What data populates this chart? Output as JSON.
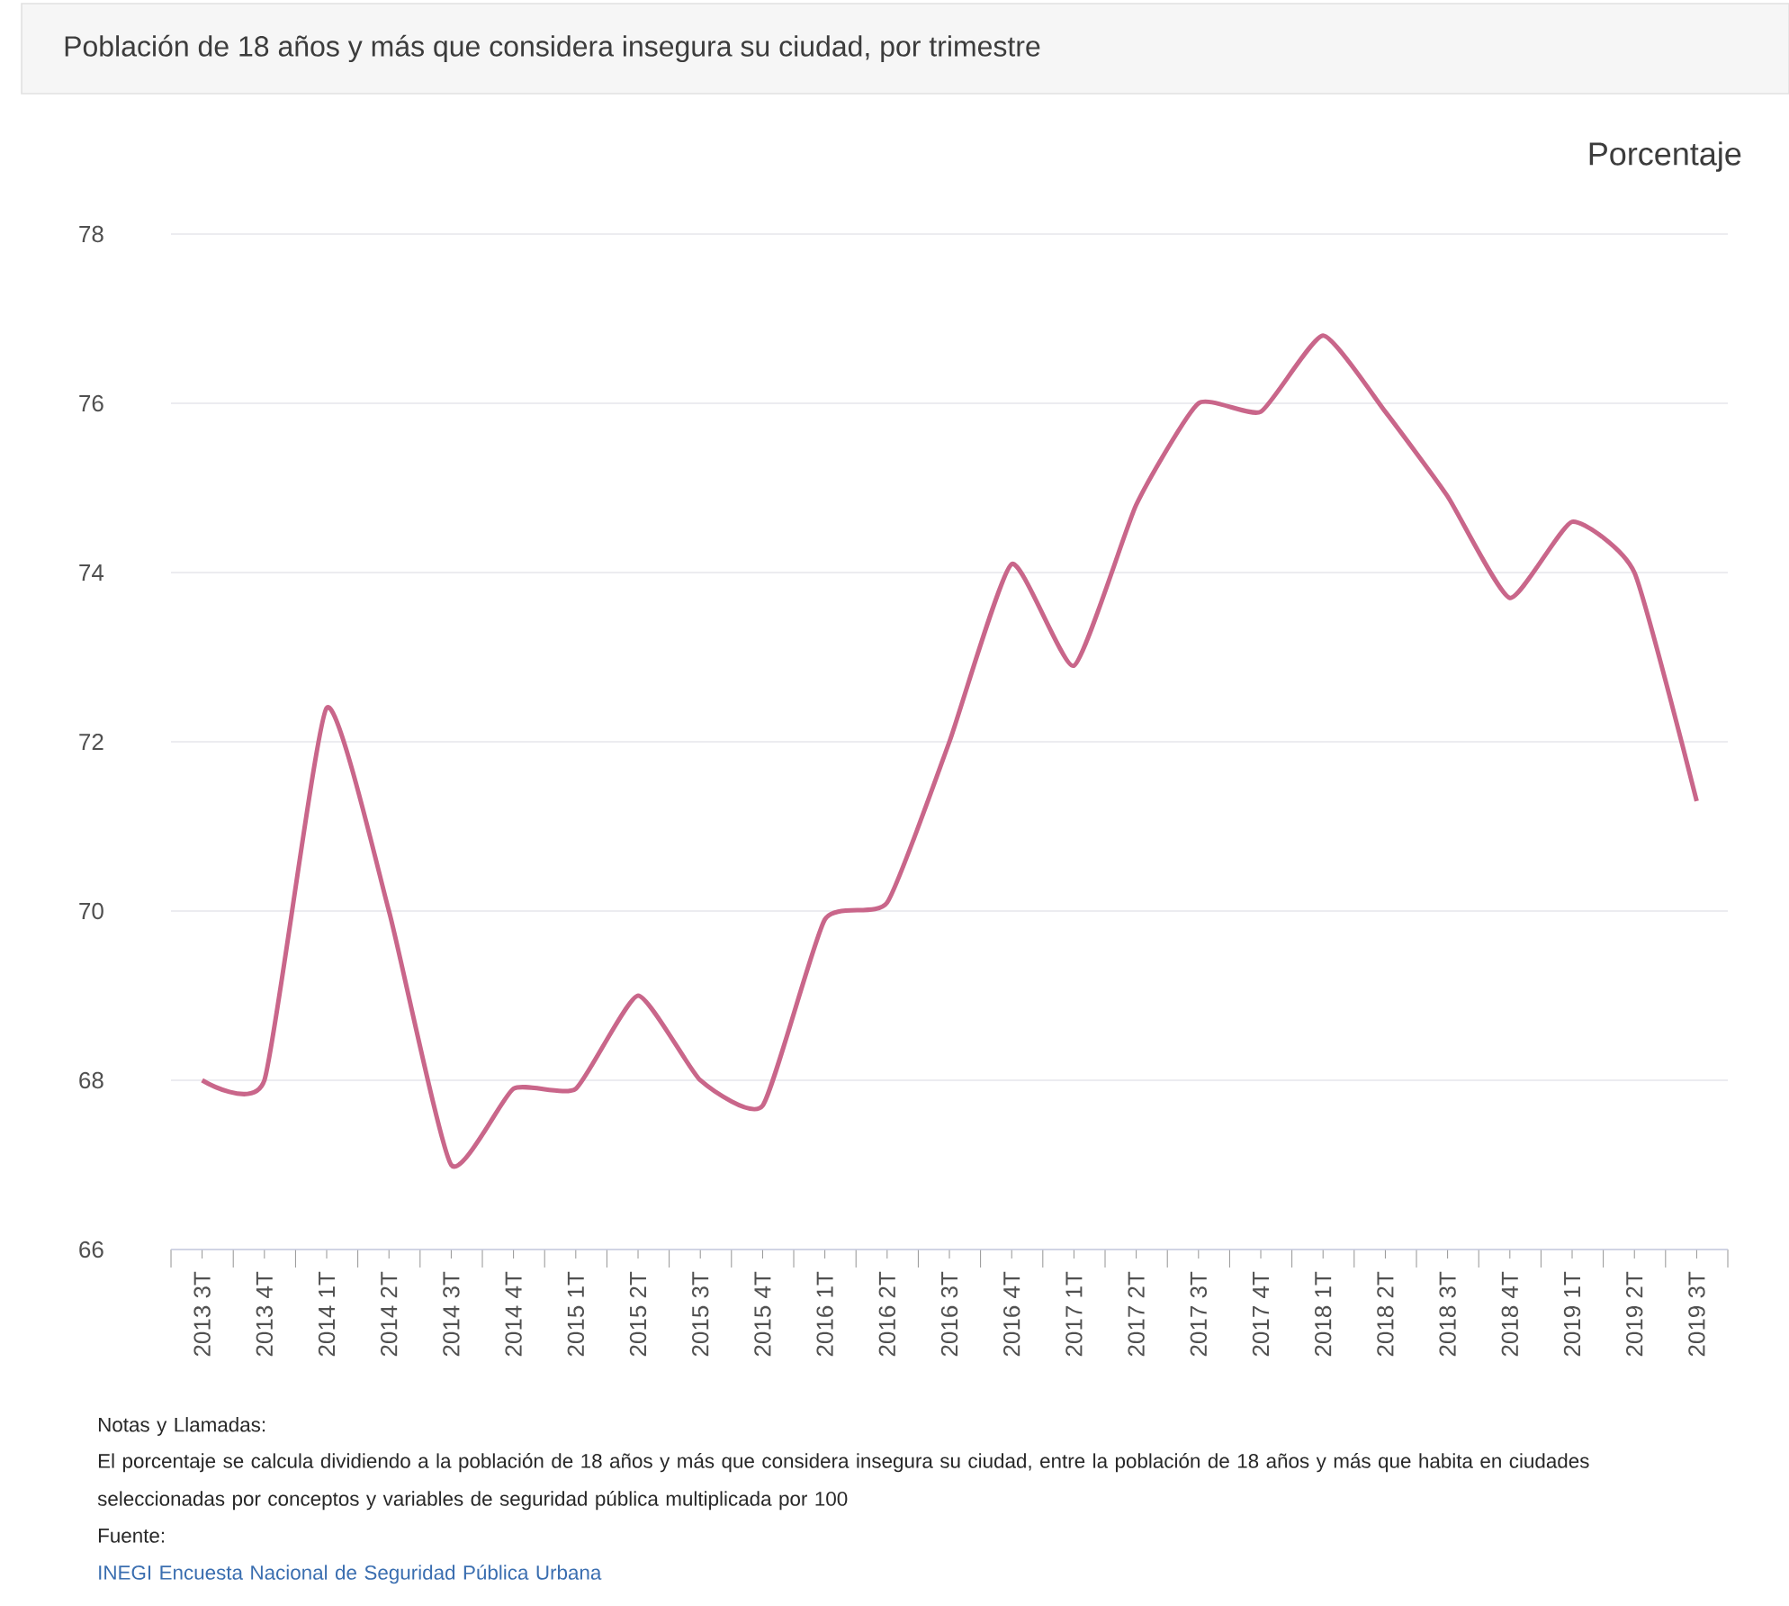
{
  "chart_data": {
    "type": "line",
    "title": "Población de 18 años y más que considera insegura su ciudad, por trimestre",
    "ylabel": "Porcentaje",
    "categories": [
      "2013 3T",
      "2013 4T",
      "2014 1T",
      "2014 2T",
      "2014 3T",
      "2014 4T",
      "2015 1T",
      "2015 2T",
      "2015 3T",
      "2015 4T",
      "2016 1T",
      "2016 2T",
      "2016 3T",
      "2016 4T",
      "2017 1T",
      "2017 2T",
      "2017 3T",
      "2017 4T",
      "2018 1T",
      "2018 2T",
      "2018 3T",
      "2018 4T",
      "2019 1T",
      "2019 2T",
      "2019 3T"
    ],
    "values": [
      68.0,
      68.0,
      72.4,
      70.0,
      67.0,
      67.9,
      67.9,
      69.0,
      68.0,
      67.7,
      69.9,
      70.1,
      72.0,
      74.1,
      72.9,
      74.8,
      76.0,
      75.9,
      76.8,
      75.9,
      74.9,
      73.7,
      74.6,
      74.0,
      71.3
    ],
    "color": "#c9668a",
    "ylim": [
      66,
      78
    ],
    "yticks": [
      66,
      68,
      70,
      72,
      74,
      76,
      78
    ],
    "grid": "y",
    "marker": "none",
    "line_style": "solid",
    "annotations": [
      "Notas y Llamadas:",
      "El porcentaje se calcula dividiendo a la población de 18 años y más que considera insegura su ciudad, entre la población de 18 años y más que habita en ciudades seleccionadas por conceptos y variables de seguridad pública multiplicada por 100",
      "Fuente:",
      "INEGI Encuesta Nacional de Seguridad Pública Urbana"
    ]
  }
}
